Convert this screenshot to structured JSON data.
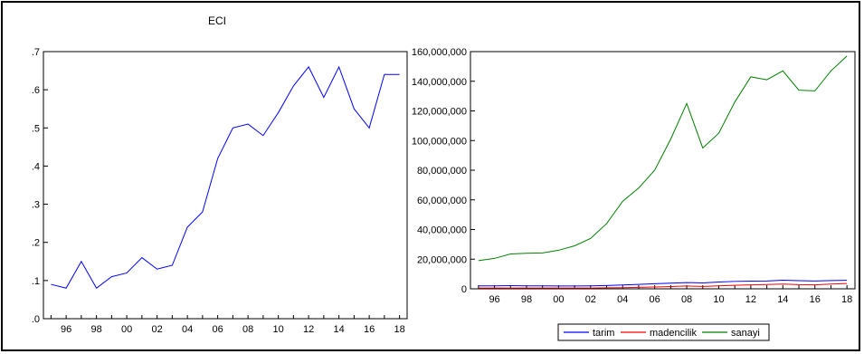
{
  "chart_data": [
    {
      "type": "line",
      "title": "ECI",
      "x": [
        1995,
        1996,
        1997,
        1998,
        1999,
        2000,
        2001,
        2002,
        2003,
        2004,
        2005,
        2006,
        2007,
        2008,
        2009,
        2010,
        2011,
        2012,
        2013,
        2014,
        2015,
        2016,
        2017,
        2018
      ],
      "series": [
        {
          "values": [
            0.09,
            0.08,
            0.15,
            0.08,
            0.11,
            0.12,
            0.16,
            0.13,
            0.14,
            0.24,
            0.28,
            0.42,
            0.5,
            0.51,
            0.48,
            0.54,
            0.61,
            0.66,
            0.58,
            0.66,
            0.55,
            0.5,
            0.64,
            0.64
          ],
          "color": "#0000ff"
        }
      ],
      "ylim": [
        0,
        0.7
      ],
      "yticks": [
        0,
        0.1,
        0.2,
        0.3,
        0.4,
        0.5,
        0.6,
        0.7
      ],
      "ytick_labels": [
        ".0",
        ".1",
        ".2",
        ".3",
        ".4",
        ".5",
        ".6",
        ".7"
      ],
      "xticks": [
        1996,
        1998,
        2000,
        2002,
        2004,
        2006,
        2008,
        2010,
        2012,
        2014,
        2016,
        2018
      ],
      "xtick_labels": [
        "96",
        "98",
        "00",
        "02",
        "04",
        "06",
        "08",
        "10",
        "12",
        "14",
        "16",
        "18"
      ],
      "grid": false
    },
    {
      "type": "line",
      "title": "",
      "x": [
        1995,
        1996,
        1997,
        1998,
        1999,
        2000,
        2001,
        2002,
        2003,
        2004,
        2005,
        2006,
        2007,
        2008,
        2009,
        2010,
        2011,
        2012,
        2013,
        2014,
        2015,
        2016,
        2017,
        2018
      ],
      "series": [
        {
          "name": "tarim",
          "color": "#0000ff",
          "values": [
            2000000,
            2000000,
            2100000,
            2000000,
            2000000,
            1900000,
            1900000,
            2000000,
            2200000,
            2600000,
            3000000,
            3400000,
            3800000,
            4200000,
            4000000,
            4600000,
            5000000,
            5200000,
            5300000,
            5800000,
            5500000,
            5300000,
            5600000,
            5700000
          ]
        },
        {
          "name": "madencilik",
          "color": "#ff0000",
          "values": [
            500000,
            500000,
            550000,
            500000,
            500000,
            500000,
            500000,
            550000,
            650000,
            800000,
            1000000,
            1200000,
            1500000,
            1900000,
            1600000,
            2000000,
            2400000,
            2700000,
            2900000,
            3200000,
            2800000,
            2700000,
            3200000,
            3600000
          ]
        },
        {
          "name": "sanayi",
          "color": "#008000",
          "values": [
            19000000,
            20500000,
            23500000,
            24000000,
            24200000,
            26000000,
            29000000,
            34000000,
            44000000,
            59000000,
            68000000,
            80000000,
            101000000,
            125000000,
            95000000,
            105000000,
            126000000,
            143000000,
            141000000,
            147000000,
            134000000,
            133500000,
            147000000,
            157000000
          ]
        }
      ],
      "ylim": [
        0,
        160000000
      ],
      "yticks": [
        0,
        20000000,
        40000000,
        60000000,
        80000000,
        100000000,
        120000000,
        140000000,
        160000000
      ],
      "ytick_labels": [
        "0",
        "20,000,000",
        "40,000,000",
        "60,000,000",
        "80,000,000",
        "100,000,000",
        "120,000,000",
        "140,000,000",
        "160,000,000"
      ],
      "xticks": [
        1996,
        1998,
        2000,
        2002,
        2004,
        2006,
        2008,
        2010,
        2012,
        2014,
        2016,
        2018
      ],
      "xtick_labels": [
        "96",
        "98",
        "00",
        "02",
        "04",
        "06",
        "08",
        "10",
        "12",
        "14",
        "16",
        "18"
      ],
      "legend": "bottom-center",
      "grid": false
    }
  ]
}
